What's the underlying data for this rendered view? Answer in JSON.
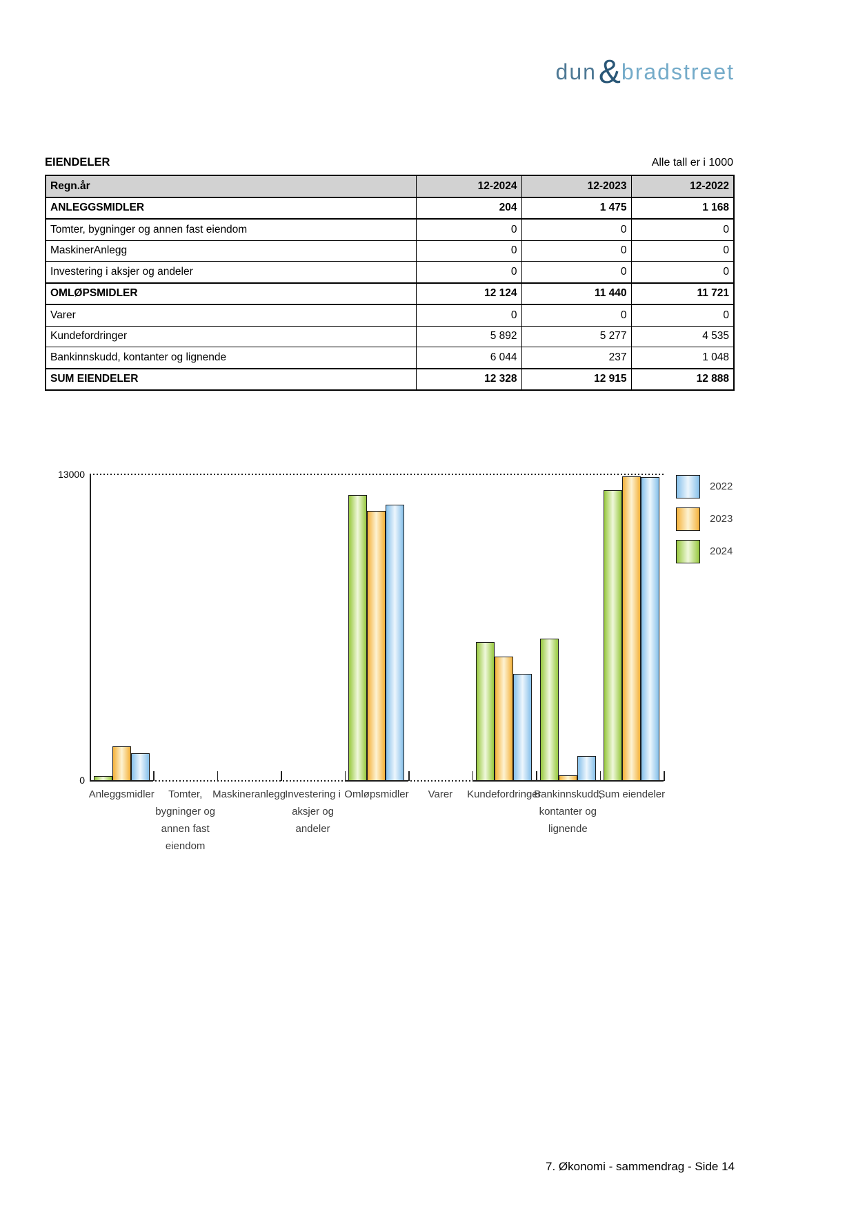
{
  "page": {
    "logo": {
      "part1": "dun",
      "ampersand": "&",
      "part2": "bradstreet"
    },
    "section_title": "EIENDELER",
    "units_note": "Alle tall er i 1000",
    "footer": "7. Økonomi - sammendrag - Side 14"
  },
  "table": {
    "columns": [
      "Regn.år",
      "12-2024",
      "12-2023",
      "12-2022"
    ],
    "rows": [
      {
        "label": "ANLEGGSMIDLER",
        "values": [
          "204",
          "1 475",
          "1 168"
        ],
        "bold": true
      },
      {
        "label": "Tomter, bygninger og annen fast eiendom",
        "values": [
          "0",
          "0",
          "0"
        ],
        "bold": false
      },
      {
        "label": "MaskinerAnlegg",
        "values": [
          "0",
          "0",
          "0"
        ],
        "bold": false
      },
      {
        "label": "Investering i aksjer og andeler",
        "values": [
          "0",
          "0",
          "0"
        ],
        "bold": false
      },
      {
        "label": "OMLØPSMIDLER",
        "values": [
          "12 124",
          "11 440",
          "11 721"
        ],
        "bold": true
      },
      {
        "label": "Varer",
        "values": [
          "0",
          "0",
          "0"
        ],
        "bold": false
      },
      {
        "label": "Kundefordringer",
        "values": [
          "5 892",
          "5 277",
          "4 535"
        ],
        "bold": false
      },
      {
        "label": "Bankinnskudd, kontanter og lignende",
        "values": [
          "6 044",
          "237",
          "1 048"
        ],
        "bold": false
      },
      {
        "label": "SUM EIENDELER",
        "values": [
          "12 328",
          "12 915",
          "12 888"
        ],
        "bold": true
      }
    ]
  },
  "chart_data": {
    "type": "bar",
    "title": "",
    "xlabel": "",
    "ylabel": "",
    "ylim": [
      0,
      13000
    ],
    "ytick_labels": [
      "13000",
      "0"
    ],
    "grid": "dotted line at y=13000 and dotted zero baseline",
    "legend_position": "outside-right-top",
    "legend_order": [
      "2022",
      "2023",
      "2024"
    ],
    "categories": [
      "Anleggsmidler",
      "Tomter, bygninger og annen fast eiendom",
      "Maskineranlegg",
      "Investering i aksjer og andeler",
      "Omløpsmidler",
      "Varer",
      "Kundefordringer",
      "Bankinnskudd, kontanter og lignende",
      "Sum eiendeler"
    ],
    "category_label_lines": [
      [
        "Anleggsmidler"
      ],
      [
        "Tomter,",
        "bygninger og",
        "annen fast",
        "eiendom"
      ],
      [
        "Maskineranlegg"
      ],
      [
        "Investering i",
        "aksjer og",
        "andeler"
      ],
      [
        "Omløpsmidler"
      ],
      [
        "Varer"
      ],
      [
        "Kundefordringer"
      ],
      [
        "Bankinnskudd,",
        "kontanter og",
        "lignende"
      ],
      [
        "Sum eiendeler"
      ]
    ],
    "series": [
      {
        "name": "2024",
        "values": [
          204,
          0,
          0,
          0,
          12124,
          0,
          5892,
          6044,
          12328
        ],
        "edge_color": "#97C83E",
        "center_color": "#F0F8DC"
      },
      {
        "name": "2023",
        "values": [
          1475,
          0,
          0,
          0,
          11440,
          0,
          5277,
          237,
          12915
        ],
        "edge_color": "#F4B13A",
        "center_color": "#FDF3D3"
      },
      {
        "name": "2022",
        "values": [
          1168,
          0,
          0,
          0,
          11721,
          0,
          4535,
          1048,
          12888
        ],
        "edge_color": "#86C0EA",
        "center_color": "#EDF6FD"
      }
    ]
  }
}
